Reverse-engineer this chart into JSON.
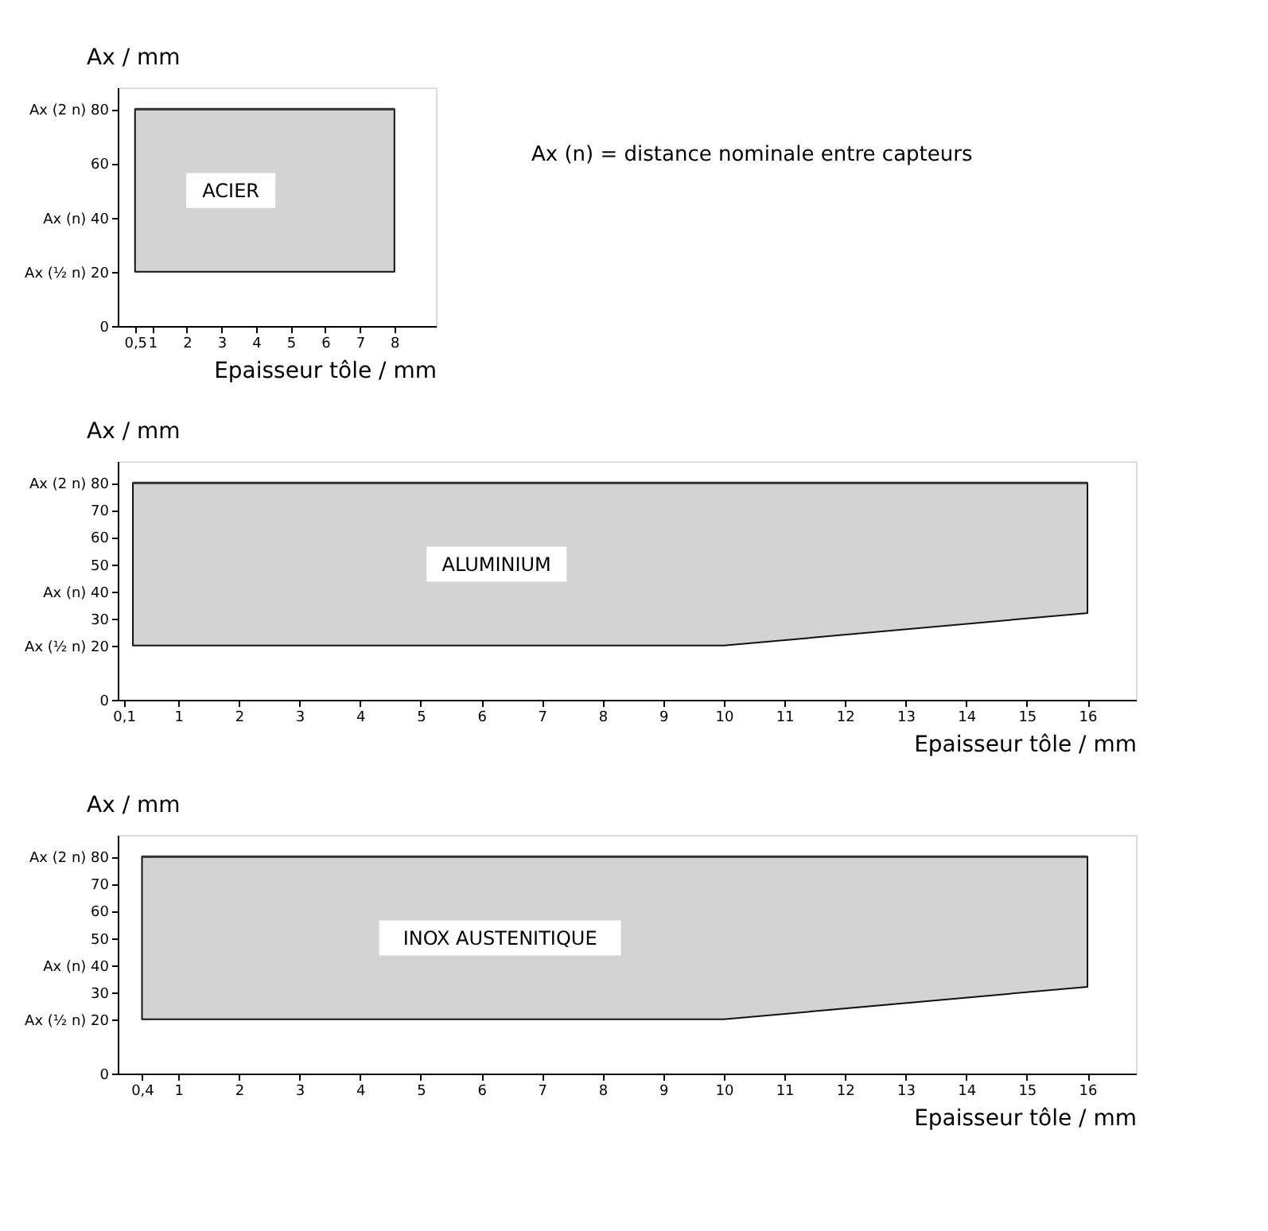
{
  "chart_data": [
    {
      "type": "line",
      "xlabel": "Epaisseur tôle / mm",
      "ylabel": "Ax / mm",
      "x": [
        0.5,
        8
      ],
      "series": [
        {
          "name": "ACIER",
          "color": "#333333",
          "values": [
            80,
            80
          ],
          "lower": [
            20,
            20
          ],
          "upper": [
            80,
            80
          ]
        }
      ],
      "xlim": [
        0,
        9.2
      ],
      "xticks": [
        {
          "value": 0.5,
          "label": "0,5"
        },
        1,
        2,
        3,
        4,
        5,
        6,
        7,
        8
      ],
      "ylim": [
        0,
        88
      ],
      "yticks": [
        0,
        {
          "value": 20,
          "label": "Ax (½ n)   20"
        },
        {
          "value": 40,
          "label": "Ax (n)   40"
        },
        60,
        {
          "value": 80,
          "label": "Ax (2 n)   80"
        }
      ],
      "annotations": [
        "Ax (n) = distance nominale entre capteurs"
      ],
      "grid": false
    },
    {
      "type": "line",
      "xlabel": "Epaisseur tôle / mm",
      "ylabel": "Ax / mm",
      "x": [
        0.25,
        10,
        16
      ],
      "series": [
        {
          "name": "ALUMINIUM",
          "color": "#333333",
          "values": [
            80,
            80,
            80
          ],
          "lower": [
            20,
            20,
            32
          ],
          "upper": [
            80,
            80,
            80
          ]
        }
      ],
      "xlim": [
        0,
        16.8
      ],
      "xticks": [
        {
          "value": 0.1,
          "label": "0,1"
        },
        1,
        2,
        3,
        4,
        5,
        6,
        7,
        8,
        9,
        10,
        11,
        12,
        13,
        14,
        15,
        16
      ],
      "ylim": [
        0,
        88
      ],
      "yticks": [
        0,
        {
          "value": 20,
          "label": "Ax (½ n)   20"
        },
        30,
        {
          "value": 40,
          "label": "Ax (n)   40"
        },
        50,
        60,
        70,
        {
          "value": 80,
          "label": "Ax (2 n)   80"
        }
      ],
      "grid": false
    },
    {
      "type": "line",
      "xlabel": "Epaisseur tôle / mm",
      "ylabel": "Ax / mm",
      "x": [
        0.4,
        10,
        16
      ],
      "series": [
        {
          "name": "INOX AUSTENITIQUE",
          "color": "#333333",
          "values": [
            80,
            80,
            80
          ],
          "lower": [
            20,
            20,
            32
          ],
          "upper": [
            80,
            80,
            80
          ]
        }
      ],
      "xlim": [
        0,
        16.8
      ],
      "xticks": [
        {
          "value": 0.4,
          "label": "0,4"
        },
        1,
        2,
        3,
        4,
        5,
        6,
        7,
        8,
        9,
        10,
        11,
        12,
        13,
        14,
        15,
        16
      ],
      "ylim": [
        0,
        88
      ],
      "yticks": [
        0,
        {
          "value": 20,
          "label": "Ax (½ n)   20"
        },
        30,
        {
          "value": 40,
          "label": "Ax (n)   40"
        },
        50,
        60,
        70,
        {
          "value": 80,
          "label": "Ax (2 n)   80"
        }
      ],
      "grid": false
    }
  ]
}
